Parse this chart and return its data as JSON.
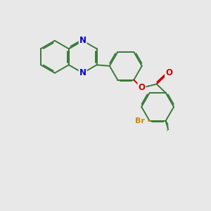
{
  "background_color": "#e8e8e8",
  "bond_color": "#3a7a3a",
  "nitrogen_color": "#0000cc",
  "oxygen_color": "#cc0000",
  "bromine_color": "#cc8800",
  "bond_width": 1.4,
  "dbo": 0.055,
  "figsize": [
    3.0,
    3.0
  ],
  "dpi": 100,
  "xlim": [
    0,
    10
  ],
  "ylim": [
    0,
    10
  ]
}
